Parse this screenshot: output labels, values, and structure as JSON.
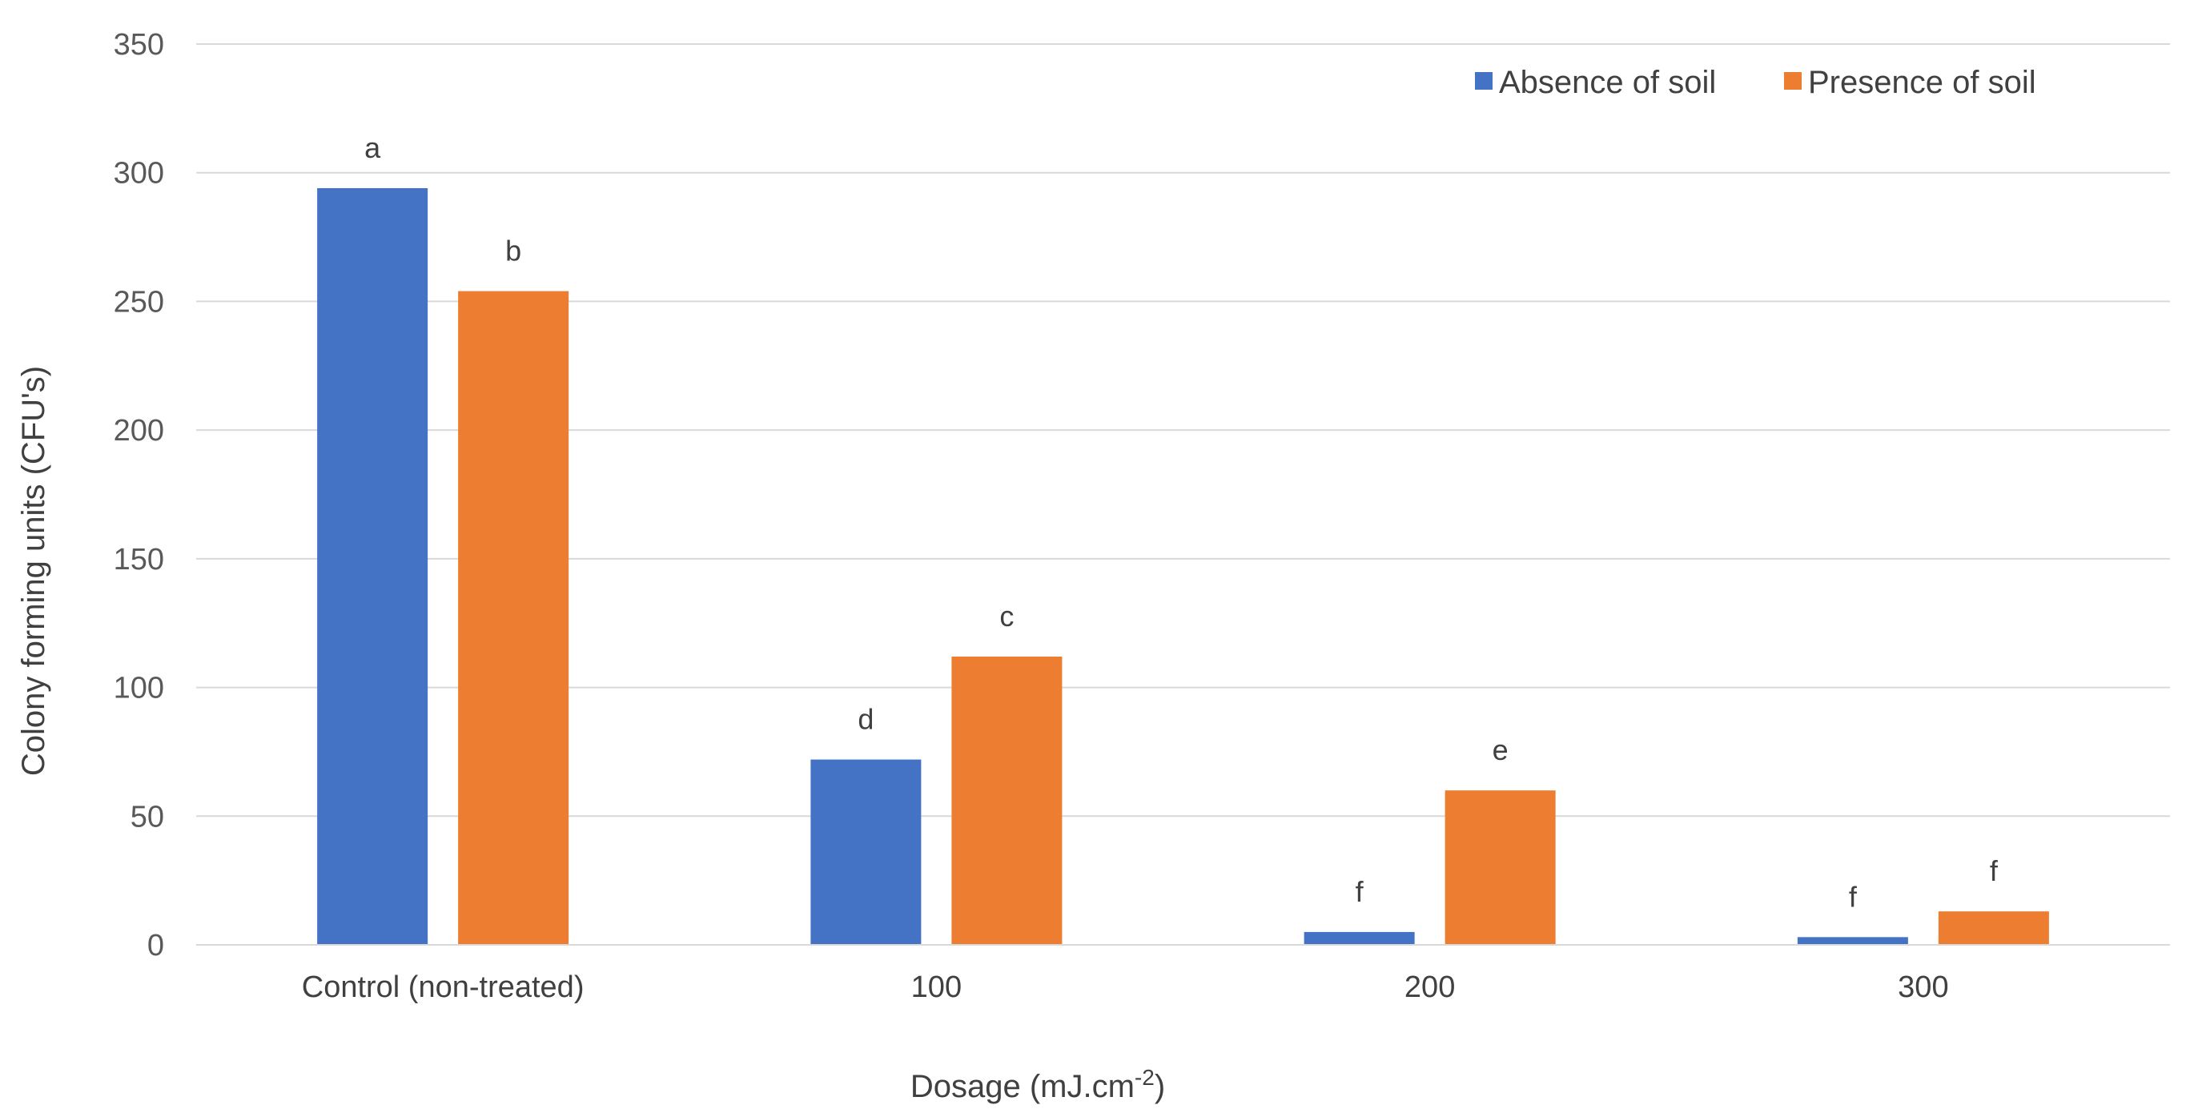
{
  "chart_data": {
    "type": "bar",
    "title": "",
    "xlabel": "Dosage (mJ.cm",
    "xlabel_superscript": "-2",
    "xlabel_suffix": ")",
    "ylabel": "Colony forming units (CFU's)",
    "ylim": [
      0,
      350
    ],
    "yticks": [
      0,
      50,
      100,
      150,
      200,
      250,
      300,
      350
    ],
    "grid": true,
    "legend_position": "top-right",
    "categories": [
      "Control (non-treated)",
      "100",
      "200",
      "300"
    ],
    "series": [
      {
        "name": "Absence of soil",
        "color": "#4472C4",
        "values": [
          294,
          72,
          5,
          3
        ],
        "labels": [
          "a",
          "d",
          "f",
          "f"
        ]
      },
      {
        "name": "Presence of soil",
        "color": "#ED7D31",
        "values": [
          254,
          112,
          60,
          13
        ],
        "labels": [
          "b",
          "c",
          "e",
          "f"
        ]
      }
    ]
  }
}
